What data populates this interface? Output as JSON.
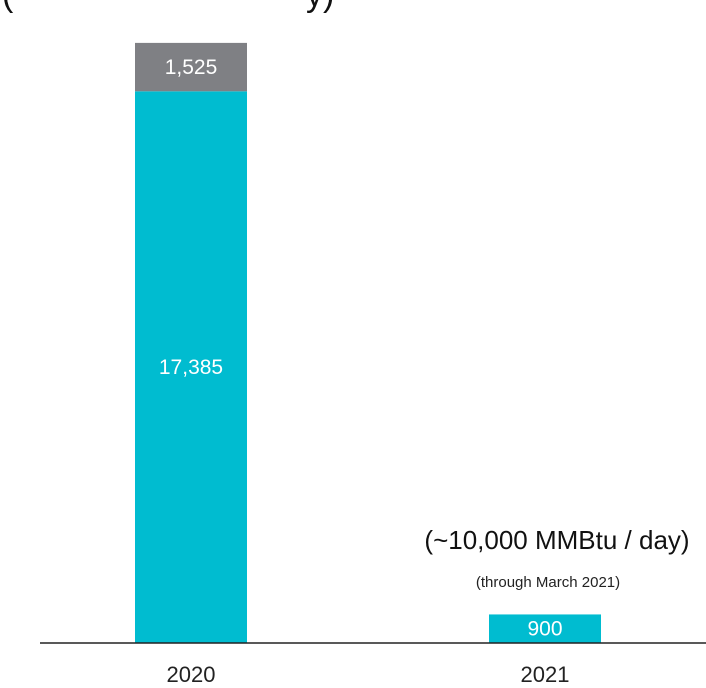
{
  "chart_data": {
    "type": "bar",
    "stacked": true,
    "categories": [
      "2020",
      "2021"
    ],
    "series": [
      {
        "values": [
          17385,
          900
        ],
        "color": "#00BCD0"
      },
      {
        "values": [
          1525,
          0
        ],
        "color": "#7F8084"
      }
    ],
    "annotations": {
      "top_partial": "(",
      "top_partial_end": "y)",
      "main": "(~10,000 MMBtu / day)",
      "sub": "(through March 2021)"
    }
  }
}
